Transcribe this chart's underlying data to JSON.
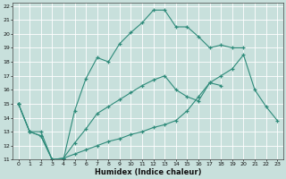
{
  "xlabel": "Humidex (Indice chaleur)",
  "xlim": [
    -0.5,
    23.5
  ],
  "ylim": [
    11,
    22.2
  ],
  "xticks": [
    0,
    1,
    2,
    3,
    4,
    5,
    6,
    7,
    8,
    9,
    10,
    11,
    12,
    13,
    14,
    15,
    16,
    17,
    18,
    19,
    20,
    21,
    22,
    23
  ],
  "yticks": [
    11,
    12,
    13,
    14,
    15,
    16,
    17,
    18,
    19,
    20,
    21,
    22
  ],
  "bg_color": "#c8e0dc",
  "grid_color": "#ffffff",
  "line_color": "#2e8b7a",
  "line1_x": [
    0,
    1,
    2,
    3,
    4,
    5,
    6,
    7,
    8,
    9,
    10,
    11,
    12,
    13,
    14,
    15,
    16,
    17,
    18,
    19,
    20
  ],
  "line1_y": [
    15,
    13,
    13,
    11,
    11,
    14.5,
    16.8,
    18.3,
    18.0,
    19.3,
    20.1,
    20.8,
    21.7,
    21.7,
    20.5,
    20.5,
    19.8,
    19.0,
    19.2,
    19.0,
    19.0
  ],
  "line2_x": [
    0,
    1,
    2,
    3,
    4,
    5,
    6,
    7,
    8,
    9,
    10,
    11,
    12,
    13,
    14,
    15,
    16,
    17,
    18,
    19,
    20,
    21,
    22,
    23
  ],
  "line2_y": [
    15,
    13,
    12.7,
    11,
    11.1,
    12.2,
    13.2,
    14.3,
    14.8,
    15.3,
    15.8,
    16.3,
    16.7,
    17.0,
    16.0,
    15.5,
    15.2,
    16.5,
    16.3,
    null,
    null,
    null,
    null,
    null
  ],
  "line3_x": [
    0,
    1,
    2,
    3,
    4,
    5,
    6,
    7,
    8,
    9,
    10,
    11,
    12,
    13,
    14,
    15,
    16,
    17,
    18,
    19,
    20,
    21,
    22,
    23
  ],
  "line3_y": [
    15,
    13,
    12.7,
    11,
    11.1,
    11.4,
    11.7,
    12.0,
    12.3,
    12.5,
    12.8,
    13.0,
    13.3,
    13.5,
    13.8,
    14.5,
    15.5,
    16.5,
    17.0,
    17.5,
    18.5,
    16.0,
    14.8,
    13.8
  ]
}
